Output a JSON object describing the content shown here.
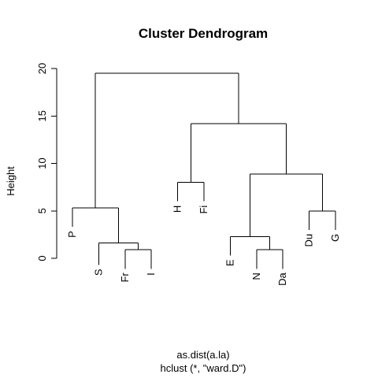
{
  "chart_data": {
    "type": "dendrogram",
    "title": "Cluster Dendrogram",
    "ylabel": "Height",
    "xlabel": "as.dist(a.la)",
    "sublabel": "hclust (*, \"ward.D\")",
    "ylim": [
      0,
      20
    ],
    "yticks": [
      0,
      5,
      10,
      15,
      20
    ],
    "leaves": [
      {
        "label": "P",
        "order": 1
      },
      {
        "label": "S",
        "order": 2
      },
      {
        "label": "Fr",
        "order": 3
      },
      {
        "label": "I",
        "order": 4
      },
      {
        "label": "H",
        "order": 5
      },
      {
        "label": "Fi",
        "order": 6
      },
      {
        "label": "E",
        "order": 7
      },
      {
        "label": "N",
        "order": 8
      },
      {
        "label": "Da",
        "order": 9
      },
      {
        "label": "Du",
        "order": 10
      },
      {
        "label": "G",
        "order": 11
      }
    ],
    "merges": [
      {
        "id": "m1",
        "left": "Fr",
        "right": "I",
        "height": 0.9
      },
      {
        "id": "m2",
        "left": "N",
        "right": "Da",
        "height": 0.9
      },
      {
        "id": "m3",
        "left": "S",
        "right": "m1",
        "height": 1.6
      },
      {
        "id": "m4",
        "left": "E",
        "right": "m2",
        "height": 2.3
      },
      {
        "id": "m5",
        "left": "Du",
        "right": "G",
        "height": 5.0
      },
      {
        "id": "m6",
        "left": "P",
        "right": "m3",
        "height": 5.3
      },
      {
        "id": "m7",
        "left": "H",
        "right": "Fi",
        "height": 8.0
      },
      {
        "id": "m8",
        "left": "m4",
        "right": "m5",
        "height": 8.9
      },
      {
        "id": "m9",
        "left": "m7",
        "right": "m8",
        "height": 14.2
      },
      {
        "id": "m10",
        "left": "m6",
        "right": "m9",
        "height": 19.5
      }
    ],
    "leaf_label_heights": {
      "P": 3.3,
      "S": -0.7,
      "Fr": -1.1,
      "I": -1.1,
      "H": 6.0,
      "Fi": 6.0,
      "E": 0.3,
      "N": -1.1,
      "Da": -1.1,
      "Du": 3.0,
      "G": 3.0
    }
  }
}
